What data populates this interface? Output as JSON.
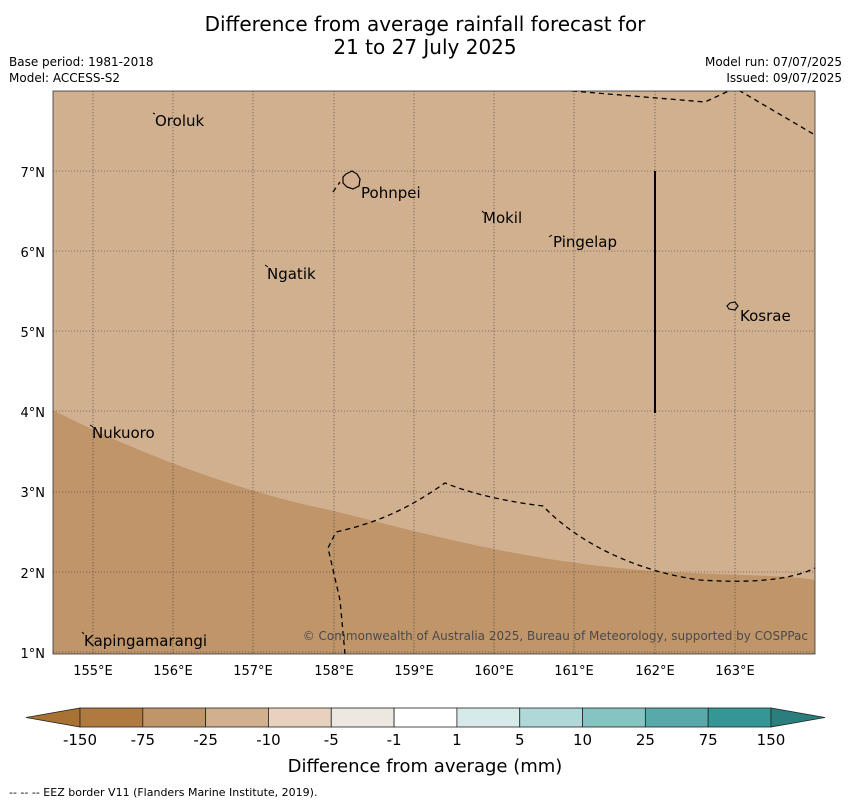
{
  "title_line1": "Difference from average rainfall forecast for",
  "title_line2": "21 to 27 July 2025",
  "base_period": "Base period: 1981-2018",
  "model": "Model: ACCESS-S2",
  "model_run": "Model run: 07/07/2025",
  "issued": "Issued: 09/07/2025",
  "map": {
    "lon_ticks": [
      "155°E",
      "156°E",
      "157°E",
      "158°E",
      "159°E",
      "160°E",
      "161°E",
      "162°E",
      "163°E"
    ],
    "lat_ticks": [
      "1°N",
      "2°N",
      "3°N",
      "4°N",
      "5°N",
      "6°N",
      "7°N"
    ],
    "places": [
      {
        "name": "Oroluk"
      },
      {
        "name": "Pohnpei"
      },
      {
        "name": "Mokil"
      },
      {
        "name": "Pingelap"
      },
      {
        "name": "Ngatik"
      },
      {
        "name": "Kosrae"
      },
      {
        "name": "Nukuoro"
      },
      {
        "name": "Kapingamarangi"
      }
    ],
    "copyright": "© Commonwealth of Australia 2025, Bureau of Meteorology, supported by COSPPac",
    "colors": {
      "light_dry": "#d1b08f",
      "moderate_dry": "#c0956a"
    }
  },
  "colorbar": {
    "label": "Difference from average (mm)",
    "ticks": [
      "-150",
      "-75",
      "-25",
      "-10",
      "-5",
      "-1",
      "1",
      "5",
      "10",
      "25",
      "75",
      "150"
    ],
    "colors": [
      "#a87232",
      "#ae7a3f",
      "#c0956a",
      "#d1b08f",
      "#e8d2be",
      "#ece7e1",
      "#ffffff",
      "#d6ebe9",
      "#b0d8d8",
      "#84c4c2",
      "#58a9a8",
      "#359795",
      "#2a7f7d"
    ]
  },
  "footer": "--  --  -- EEZ border V11 (Flanders Marine Institute, 2019)."
}
